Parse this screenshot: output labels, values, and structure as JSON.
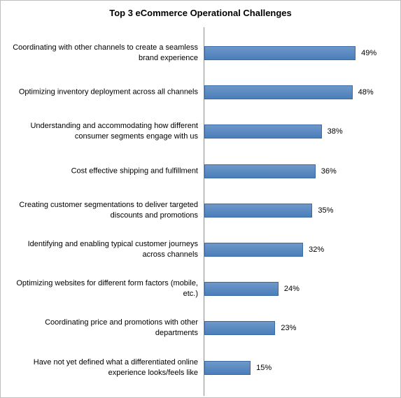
{
  "chart_data": {
    "type": "bar",
    "orientation": "horizontal",
    "title": "Top 3 eCommerce Operational Challenges",
    "categories": [
      "Coordinating with other channels to create a seamless brand experience",
      "Optimizing inventory deployment across all channels",
      "Understanding and accommodating how different consumer segments engage with us",
      "Cost effective shipping and fulfillment",
      "Creating customer segmentations to deliver targeted discounts and promotions",
      "Identifying and enabling typical customer journeys across channels",
      "Optimizing websites for different form factors (mobile, etc.)",
      "Coordinating price and promotions with other departments",
      "Have not yet defined what a differentiated online experience looks/feels like"
    ],
    "values": [
      49,
      48,
      38,
      36,
      35,
      32,
      24,
      23,
      15
    ],
    "value_labels": [
      "49%",
      "48%",
      "38%",
      "36%",
      "35%",
      "32%",
      "24%",
      "23%",
      "15%"
    ],
    "color": "#4a7ebb"
  }
}
